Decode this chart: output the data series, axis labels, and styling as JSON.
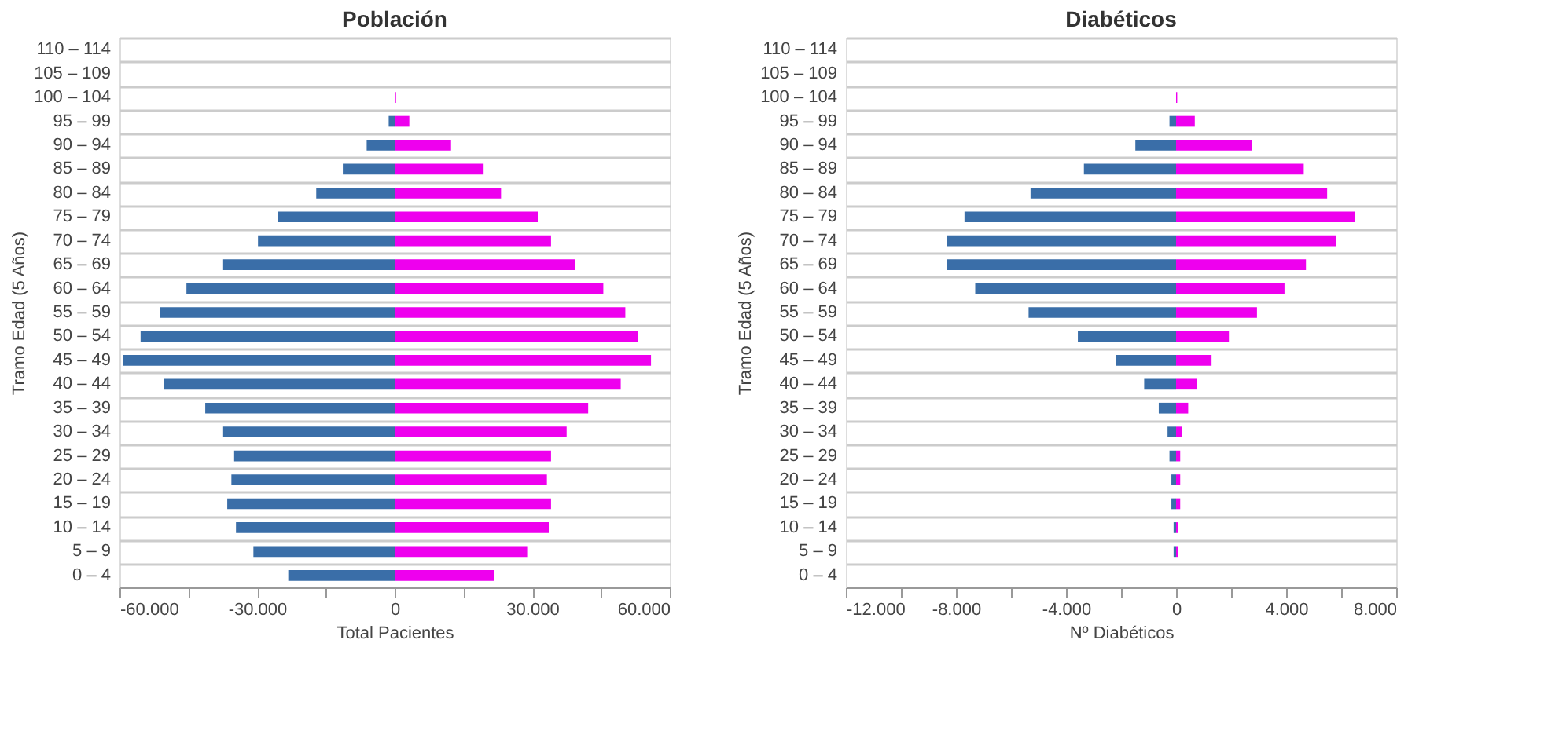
{
  "chart_data": [
    {
      "type": "bar",
      "orientation": "horizontal",
      "stacked": true,
      "title": "Población",
      "xlabel": "Total Pacientes",
      "ylabel": "Tramo Edad (5 Años)",
      "grid": "y",
      "legend": false,
      "categories": [
        "110 – 114",
        "105 – 109",
        "100 – 104",
        "95 – 99",
        "90 – 94",
        "85 – 89",
        "80 – 84",
        "75 – 79",
        "70 – 74",
        "65 – 69",
        "60 – 64",
        "55 – 59",
        "50 – 54",
        "45 – 49",
        "40 – 44",
        "35 – 39",
        "30 – 34",
        "25 – 29",
        "20 – 24",
        "15 – 19",
        "10 – 14",
        "5 – 9",
        "0 – 4"
      ],
      "series": [
        {
          "color": "#3a6ea8",
          "values": [
            0,
            0,
            0,
            -1300,
            -6100,
            -11300,
            -17100,
            -25500,
            -29800,
            -37400,
            -45400,
            -51200,
            -55400,
            -59300,
            -50300,
            -41300,
            -37400,
            -35000,
            -35600,
            -36500,
            -34600,
            -30800,
            -23200
          ]
        },
        {
          "color": "#ee00ee",
          "values": [
            0,
            0,
            300,
            3200,
            12300,
            19400,
            23200,
            31200,
            34100,
            39400,
            45500,
            50300,
            53100,
            55900,
            49300,
            42200,
            37500,
            34100,
            33200,
            34100,
            33600,
            28900,
            21700
          ]
        }
      ],
      "xlim": [
        -60000,
        60000
      ],
      "xticks": [
        {
          "value": -60000,
          "label": "-60.000"
        },
        {
          "value": -45000,
          "label": null
        },
        {
          "value": -30000,
          "label": "-30.000"
        },
        {
          "value": -15000,
          "label": null
        },
        0,
        {
          "value": 15000,
          "label": null
        },
        {
          "value": 30000,
          "label": "30.000"
        },
        {
          "value": 45000,
          "label": null
        },
        {
          "value": 60000,
          "label": "60.000"
        }
      ]
    },
    {
      "type": "bar",
      "orientation": "horizontal",
      "stacked": true,
      "title": "Diabéticos",
      "xlabel": "Nº Diabéticos",
      "ylabel": "Tramo Edad (5 Años)",
      "grid": "y",
      "legend": false,
      "categories": [
        "110 – 114",
        "105 – 109",
        "100 – 104",
        "95 – 99",
        "90 – 94",
        "85 – 89",
        "80 – 84",
        "75 – 79",
        "70 – 74",
        "65 – 69",
        "60 – 64",
        "55 – 59",
        "50 – 54",
        "45 – 49",
        "40 – 44",
        "35 – 39",
        "30 – 34",
        "25 – 29",
        "20 – 24",
        "15 – 19",
        "10 – 14",
        "5 – 9",
        "0 – 4"
      ],
      "series": [
        {
          "color": "#3a6ea8",
          "values": [
            0,
            0,
            0,
            -240,
            -1480,
            -3350,
            -5290,
            -7690,
            -8320,
            -8320,
            -7300,
            -5360,
            -3570,
            -2180,
            -1160,
            -630,
            -310,
            -240,
            -170,
            -170,
            -90,
            -90,
            0
          ]
        },
        {
          "color": "#ee00ee",
          "values": [
            0,
            0,
            40,
            680,
            2770,
            4640,
            5490,
            6510,
            5810,
            4720,
            3940,
            2940,
            1920,
            1290,
            760,
            440,
            220,
            150,
            150,
            150,
            60,
            60,
            0
          ]
        }
      ],
      "xlim": [
        -12000,
        8000
      ],
      "xticks": [
        {
          "value": -12000,
          "label": "-12.000"
        },
        {
          "value": -10000,
          "label": null
        },
        {
          "value": -8000,
          "label": "-8.000"
        },
        {
          "value": -6000,
          "label": null
        },
        {
          "value": -4000,
          "label": "-4.000"
        },
        {
          "value": -2000,
          "label": null
        },
        0,
        {
          "value": 2000,
          "label": null
        },
        {
          "value": 4000,
          "label": "4.000"
        },
        {
          "value": 6000,
          "label": null
        },
        {
          "value": 8000,
          "label": "8.000"
        }
      ]
    }
  ]
}
